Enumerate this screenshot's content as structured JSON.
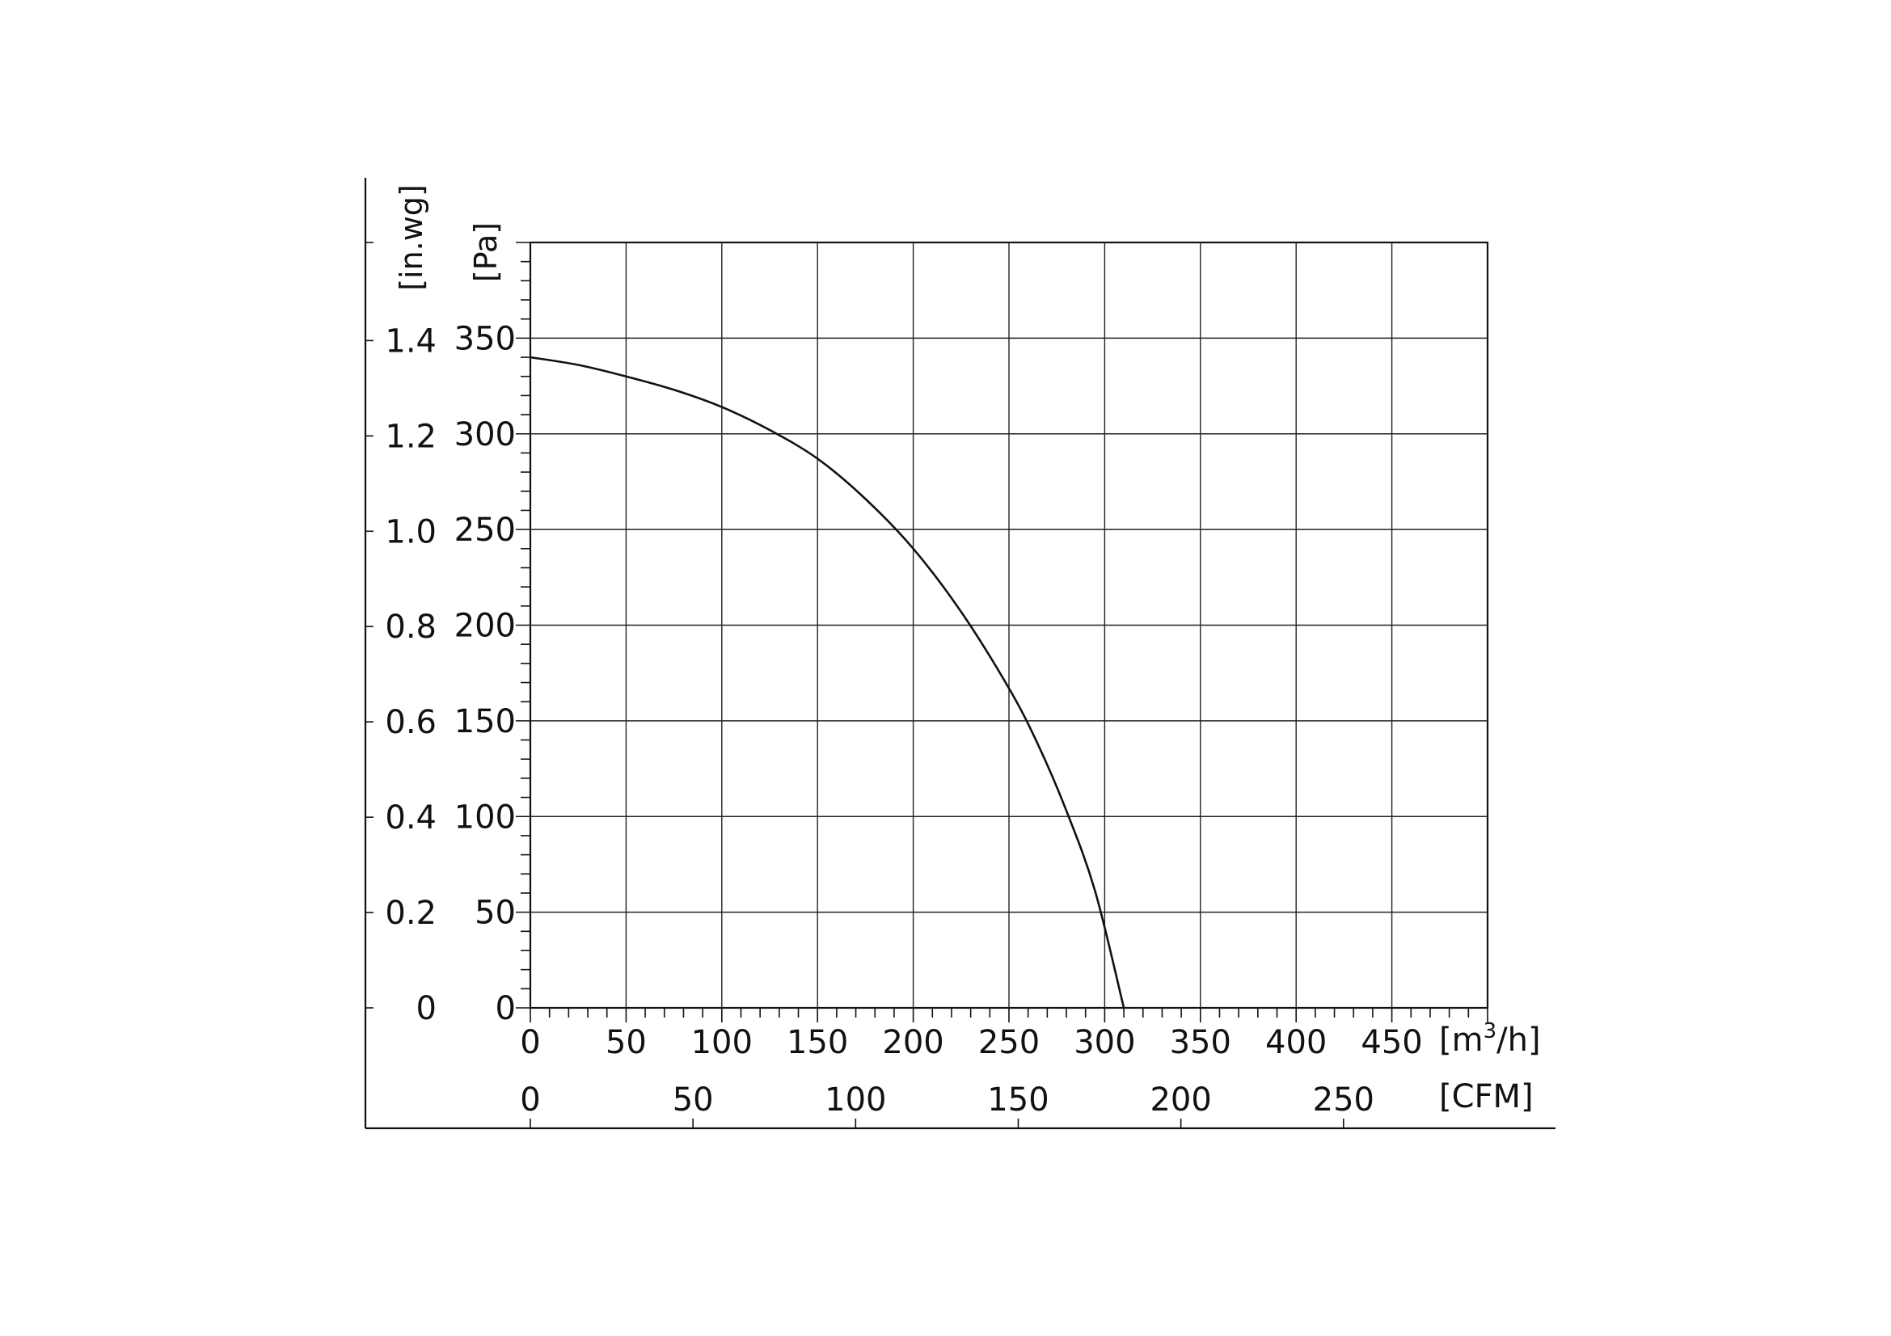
{
  "chart_data": {
    "type": "line",
    "title": "",
    "x_axis": {
      "unit_label": "[m³/h]",
      "unit_base": "[m",
      "unit_sup": "3",
      "unit_tail": "/h]",
      "range": [
        0,
        500
      ],
      "ticks": [
        0,
        50,
        100,
        150,
        200,
        250,
        300,
        350,
        400,
        450
      ],
      "tick_labels": [
        "0",
        "50",
        "100",
        "150",
        "200",
        "250",
        "300",
        "350",
        "400",
        "450"
      ]
    },
    "x_axis_secondary": {
      "unit_label": "[CFM]",
      "ticks": [
        0,
        50,
        100,
        150,
        200,
        250
      ],
      "tick_labels": [
        "0",
        "50",
        "100",
        "150",
        "200",
        "250"
      ],
      "m3h_per_unit": 1.699
    },
    "y_axis": {
      "unit_label": "[Pa]",
      "range": [
        0,
        400
      ],
      "ticks": [
        0,
        50,
        100,
        150,
        200,
        250,
        300,
        350
      ],
      "tick_labels": [
        "0",
        "50",
        "100",
        "150",
        "200",
        "250",
        "300",
        "350"
      ]
    },
    "y_axis_secondary": {
      "unit_label": "[in.wg]",
      "ticks": [
        0,
        0.2,
        0.4,
        0.6,
        0.8,
        1.0,
        1.2,
        1.4
      ],
      "tick_labels": [
        "0",
        "0.2",
        "0.4",
        "0.6",
        "0.8",
        "1.0",
        "1.2",
        "1.4"
      ],
      "pa_per_unit": 249.09
    },
    "grid": true,
    "series": [
      {
        "x": [
          0,
          25,
          50,
          75,
          100,
          125,
          150,
          175,
          200,
          225,
          250,
          265,
          280,
          295,
          310
        ],
        "y": [
          340,
          336,
          330,
          323,
          314,
          302,
          287,
          266,
          240,
          207,
          167,
          138,
          103,
          61,
          0
        ]
      }
    ]
  }
}
